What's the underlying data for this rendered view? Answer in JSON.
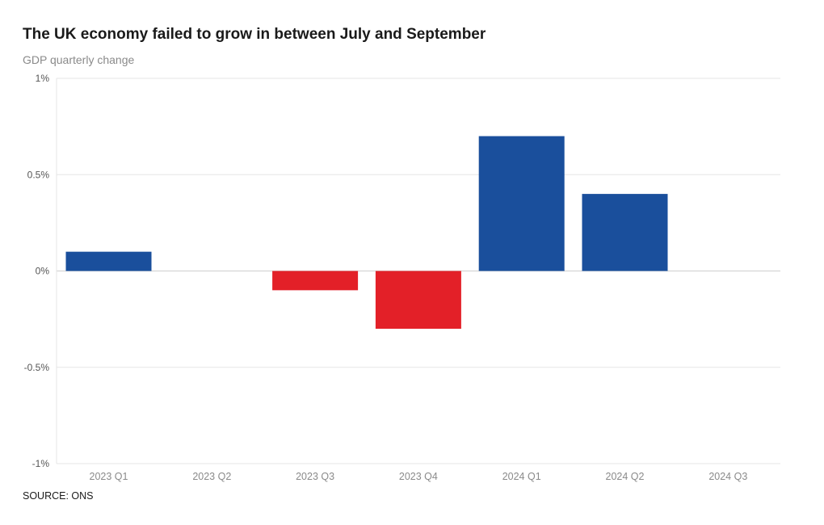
{
  "header": {
    "title": "The UK economy failed to grow in between July and September",
    "subtitle": "GDP quarterly change"
  },
  "footer": {
    "source": "SOURCE: ONS"
  },
  "colors": {
    "positive": "#1a4f9c",
    "negative": "#e32028",
    "gridline": "#e6e6e6",
    "zeroline": "#cfcfcf"
  },
  "chart_data": {
    "type": "bar",
    "title": "The UK economy failed to grow in between July and September",
    "subtitle": "GDP quarterly change",
    "categories": [
      "2023 Q1",
      "2023 Q2",
      "2023 Q3",
      "2023 Q4",
      "2024 Q1",
      "2024 Q2",
      "2024 Q3"
    ],
    "values": [
      0.1,
      0.0,
      -0.1,
      -0.3,
      0.7,
      0.4,
      0.0
    ],
    "unit": "%",
    "ylim": [
      -1,
      1
    ],
    "yticks": [
      1,
      0.5,
      0,
      -0.5,
      -1
    ],
    "ytick_labels": [
      "1%",
      "0.5%",
      "0%",
      "-0.5%",
      "-1%"
    ],
    "grid": true,
    "legend": "none",
    "source": "SOURCE: ONS"
  }
}
